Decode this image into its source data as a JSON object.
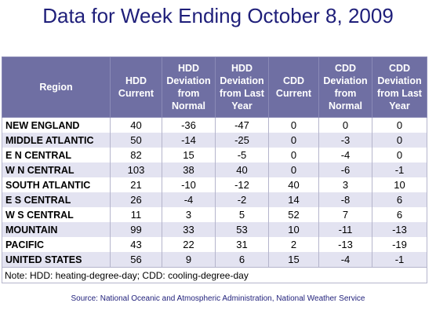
{
  "title": "Data for Week Ending October 8, 2009",
  "headers": {
    "region": "Region",
    "hdd_current": [
      "HDD",
      "Current"
    ],
    "hdd_dev_normal": [
      "HDD",
      "Deviation",
      "from",
      "Normal"
    ],
    "hdd_dev_last_year": [
      "HDD",
      "Deviation",
      "from Last",
      "Year"
    ],
    "cdd_current": [
      "CDD",
      "Current"
    ],
    "cdd_dev_normal": [
      "CDD",
      "Deviation",
      "from",
      "Normal"
    ],
    "cdd_dev_last_year": [
      "CDD",
      "Deviation",
      "from Last",
      "Year"
    ]
  },
  "rows": [
    {
      "region": "NEW ENGLAND",
      "hdd_current": "40",
      "hdd_dev_normal": "-36",
      "hdd_dev_last_year": "-47",
      "cdd_current": "0",
      "cdd_dev_normal": "0",
      "cdd_dev_last_year": "0"
    },
    {
      "region": "MIDDLE ATLANTIC",
      "hdd_current": "50",
      "hdd_dev_normal": "-14",
      "hdd_dev_last_year": "-25",
      "cdd_current": "0",
      "cdd_dev_normal": "-3",
      "cdd_dev_last_year": "0"
    },
    {
      "region": "E N CENTRAL",
      "hdd_current": "82",
      "hdd_dev_normal": "15",
      "hdd_dev_last_year": "-5",
      "cdd_current": "0",
      "cdd_dev_normal": "-4",
      "cdd_dev_last_year": "0"
    },
    {
      "region": "W N CENTRAL",
      "hdd_current": "103",
      "hdd_dev_normal": "38",
      "hdd_dev_last_year": "40",
      "cdd_current": "0",
      "cdd_dev_normal": "-6",
      "cdd_dev_last_year": "-1"
    },
    {
      "region": "SOUTH ATLANTIC",
      "hdd_current": "21",
      "hdd_dev_normal": "-10",
      "hdd_dev_last_year": "-12",
      "cdd_current": "40",
      "cdd_dev_normal": "3",
      "cdd_dev_last_year": "10"
    },
    {
      "region": "E S CENTRAL",
      "hdd_current": "26",
      "hdd_dev_normal": "-4",
      "hdd_dev_last_year": "-2",
      "cdd_current": "14",
      "cdd_dev_normal": "-8",
      "cdd_dev_last_year": "6"
    },
    {
      "region": "W S CENTRAL",
      "hdd_current": "11",
      "hdd_dev_normal": "3",
      "hdd_dev_last_year": "5",
      "cdd_current": "52",
      "cdd_dev_normal": "7",
      "cdd_dev_last_year": "6"
    },
    {
      "region": "MOUNTAIN",
      "hdd_current": "99",
      "hdd_dev_normal": "33",
      "hdd_dev_last_year": "53",
      "cdd_current": "10",
      "cdd_dev_normal": "-11",
      "cdd_dev_last_year": "-13"
    },
    {
      "region": "PACIFIC",
      "hdd_current": "43",
      "hdd_dev_normal": "22",
      "hdd_dev_last_year": "31",
      "cdd_current": "2",
      "cdd_dev_normal": "-13",
      "cdd_dev_last_year": "-19"
    },
    {
      "region": "UNITED STATES",
      "hdd_current": "56",
      "hdd_dev_normal": "9",
      "hdd_dev_last_year": "6",
      "cdd_current": "15",
      "cdd_dev_normal": "-4",
      "cdd_dev_last_year": "-1"
    }
  ],
  "note": "Note: HDD: heating-degree-day; CDD: cooling-degree-day",
  "source": "Source:  National Oceanic and Atmospheric Administration, National Weather Service",
  "colors": {
    "title": "#1f1f7a",
    "header_bg": "#6f6fa3",
    "stripe": "#e3e3f1"
  }
}
